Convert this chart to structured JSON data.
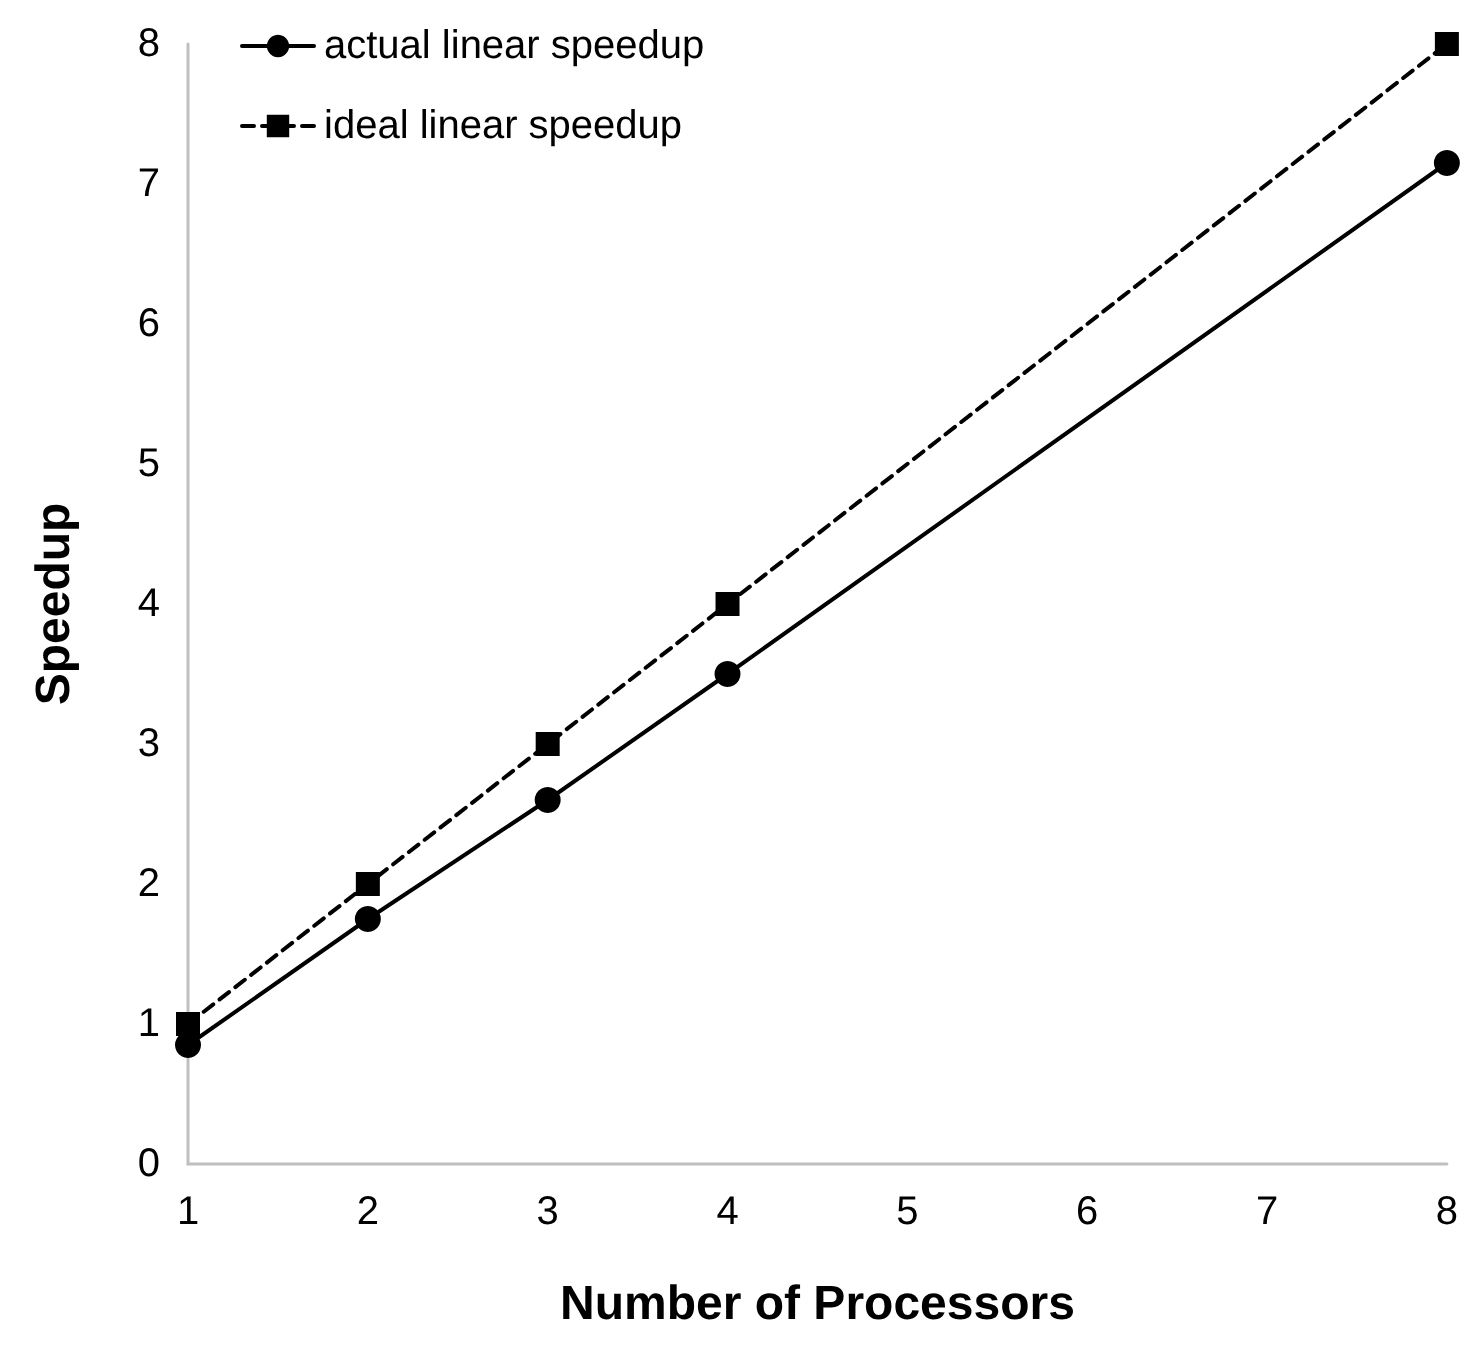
{
  "chart_data": {
    "type": "line",
    "xlabel": "Number of Processors",
    "ylabel": "Speedup",
    "x": [
      1,
      2,
      3,
      4,
      8
    ],
    "xlim": [
      1,
      8
    ],
    "xticks": [
      1,
      2,
      3,
      4,
      5,
      6,
      7,
      8
    ],
    "ylim": [
      0,
      8
    ],
    "yticks": [
      0,
      1,
      2,
      3,
      4,
      5,
      6,
      7,
      8
    ],
    "grid": false,
    "legend": "top left",
    "series": [
      {
        "name": "actual linear speedup",
        "color": "#000000",
        "marker": "circle",
        "line_style": "solid",
        "values": [
          0.85,
          1.75,
          2.6,
          3.5,
          7.15
        ]
      },
      {
        "name": "ideal linear speedup",
        "color": "#000000",
        "marker": "square",
        "line_style": "dashed",
        "values": [
          1,
          2,
          3,
          4,
          8
        ]
      }
    ]
  }
}
